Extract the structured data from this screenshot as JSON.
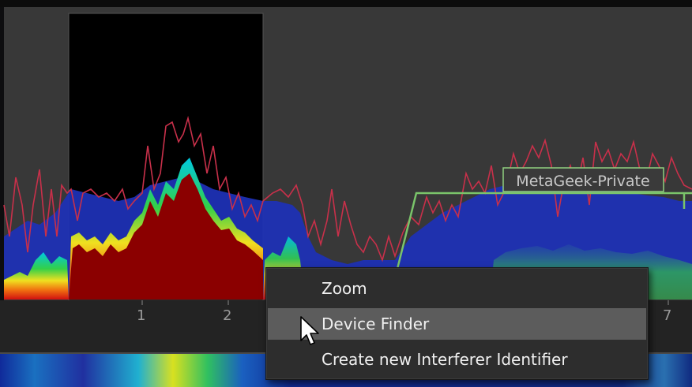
{
  "spectrum": {
    "network_label": "MetaGeek-Private",
    "axis_ticks": [
      {
        "label": "1"
      },
      {
        "label": "2"
      },
      {
        "label": "7"
      }
    ],
    "colors": {
      "background": "#3a3a3a",
      "selection": "#000000",
      "density_blue": "#1d2fb8",
      "density_red": "#8b0000",
      "max_trace": "#c0304a",
      "network_outline": "#7ac46a"
    }
  },
  "context_menu": {
    "items": [
      {
        "label": "Zoom",
        "hovered": false
      },
      {
        "label": "Device Finder",
        "hovered": true
      },
      {
        "label": "Create new Interferer Identifier",
        "hovered": false
      }
    ]
  },
  "cursor": {
    "icon": "arrow-pointer-icon"
  }
}
